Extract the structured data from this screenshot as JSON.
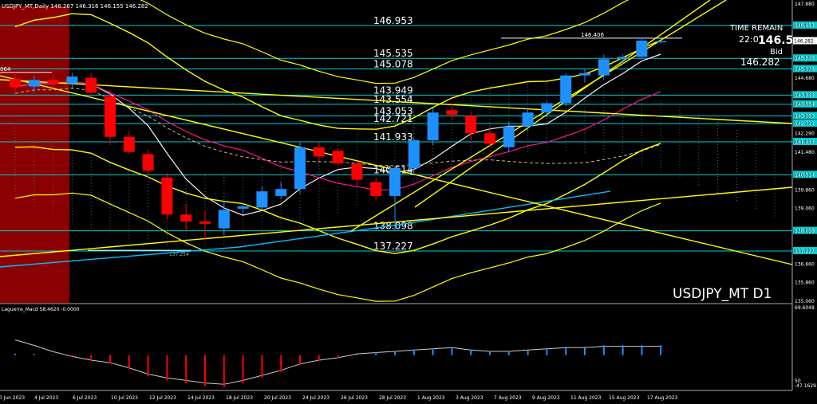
{
  "header": {
    "symbol_info": "USDJPY_MT,Daily  146.267 146.316 146.155 146.282",
    "indicator_label": "Laguerre_Macd 58.4620 -0.0000"
  },
  "info": {
    "time_remain_label": "TIME REMAIN",
    "time_remain_value": "22:0",
    "bid_price_large": "146.5",
    "bid_label": "Bid",
    "bid_value": "146.282",
    "watermark": "USDJPY_MT D1"
  },
  "colors": {
    "background": "#000000",
    "bull": "#1e90ff",
    "bear": "#ff0000",
    "level": "#00ced1",
    "band": "#ffff00",
    "ma_pink": "#ff1493",
    "ma_white": "#f5f5f5",
    "ma_cyan": "#00bfff",
    "ma_orange": "#d2b48c",
    "shade": "#8b0000",
    "axis_text": "#ffffff"
  },
  "chart_data": {
    "type": "candlestick",
    "ylim": [
      135.06,
      147.88
    ],
    "price_ticks": [
      "147.880",
      "146.953",
      "146.282",
      "145.535",
      "145.078",
      "144.680",
      "143.949",
      "143.554",
      "143.053",
      "142.721",
      "142.290",
      "141.933",
      "141.480",
      "140.514",
      "139.860",
      "139.060",
      "138.098",
      "137.227",
      "136.660",
      "135.860",
      "135.060"
    ],
    "date_labels": [
      "30 Jun 2023",
      "4 Jul 2023",
      "6 Jul 2023",
      "10 Jul 2023",
      "12 Jul 2023",
      "14 Jul 2023",
      "18 Jul 2023",
      "20 Jul 2023",
      "24 Jul 2023",
      "26 Jul 2023",
      "28 Jul 2023",
      "1 Aug 2023",
      "3 Aug 2023",
      "7 Aug 2023",
      "9 Aug 2023",
      "11 Aug 2023",
      "15 Aug 2023",
      "17 Aug 2023"
    ],
    "levels": [
      {
        "price": 146.953,
        "label": "146.953"
      },
      {
        "price": 145.535,
        "label": "145.535"
      },
      {
        "price": 145.078,
        "label": "145.078"
      },
      {
        "price": 143.949,
        "label": "143.949"
      },
      {
        "price": 143.554,
        "label": "143.554"
      },
      {
        "price": 143.053,
        "label": "143.053"
      },
      {
        "price": 142.721,
        "label": "142.721"
      },
      {
        "price": 141.933,
        "label": "141.933"
      },
      {
        "price": 140.514,
        "label": "140.514"
      },
      {
        "price": 138.098,
        "label": "138.098"
      },
      {
        "price": 137.227,
        "label": "137.227"
      }
    ],
    "annotations": [
      {
        "label": "146.406",
        "price": 146.406
      },
      {
        "label": "137.254",
        "price": 137.254
      },
      {
        "label": "064",
        "price": 144.93
      }
    ],
    "candles": [
      {
        "o": 144.65,
        "h": 144.93,
        "l": 144.1,
        "c": 144.3
      },
      {
        "o": 144.32,
        "h": 144.8,
        "l": 144.05,
        "c": 144.6
      },
      {
        "o": 144.6,
        "h": 144.82,
        "l": 144.3,
        "c": 144.45
      },
      {
        "o": 144.45,
        "h": 144.9,
        "l": 144.2,
        "c": 144.75
      },
      {
        "o": 144.7,
        "h": 144.9,
        "l": 143.9,
        "c": 144.05
      },
      {
        "o": 143.9,
        "h": 144.15,
        "l": 141.8,
        "c": 142.15
      },
      {
        "o": 142.15,
        "h": 142.4,
        "l": 141.4,
        "c": 141.5
      },
      {
        "o": 141.4,
        "h": 141.6,
        "l": 140.4,
        "c": 140.7
      },
      {
        "o": 140.4,
        "h": 140.6,
        "l": 138.6,
        "c": 138.8
      },
      {
        "o": 138.8,
        "h": 139.25,
        "l": 138.1,
        "c": 138.5
      },
      {
        "o": 138.5,
        "h": 139.0,
        "l": 137.7,
        "c": 138.4
      },
      {
        "o": 138.2,
        "h": 139.4,
        "l": 137.9,
        "c": 139.0
      },
      {
        "o": 139.05,
        "h": 139.3,
        "l": 138.8,
        "c": 139.15
      },
      {
        "o": 139.1,
        "h": 140.0,
        "l": 139.0,
        "c": 139.8
      },
      {
        "o": 139.6,
        "h": 140.2,
        "l": 139.45,
        "c": 139.9
      },
      {
        "o": 139.9,
        "h": 141.95,
        "l": 139.7,
        "c": 141.7
      },
      {
        "o": 141.7,
        "h": 141.9,
        "l": 141.1,
        "c": 141.3
      },
      {
        "o": 141.55,
        "h": 141.65,
        "l": 140.9,
        "c": 141.0
      },
      {
        "o": 141.0,
        "h": 141.1,
        "l": 140.0,
        "c": 140.3
      },
      {
        "o": 140.2,
        "h": 140.4,
        "l": 139.45,
        "c": 139.6
      },
      {
        "o": 139.6,
        "h": 140.9,
        "l": 138.1,
        "c": 140.8
      },
      {
        "o": 140.8,
        "h": 142.1,
        "l": 140.5,
        "c": 142.0
      },
      {
        "o": 142.0,
        "h": 143.4,
        "l": 141.8,
        "c": 143.2
      },
      {
        "o": 143.3,
        "h": 143.6,
        "l": 142.9,
        "c": 143.1
      },
      {
        "o": 143.05,
        "h": 143.2,
        "l": 142.0,
        "c": 142.3
      },
      {
        "o": 142.3,
        "h": 142.6,
        "l": 141.7,
        "c": 141.85
      },
      {
        "o": 141.7,
        "h": 142.8,
        "l": 141.5,
        "c": 142.6
      },
      {
        "o": 142.6,
        "h": 143.4,
        "l": 142.4,
        "c": 143.2
      },
      {
        "o": 143.2,
        "h": 143.7,
        "l": 143.0,
        "c": 143.6
      },
      {
        "o": 143.6,
        "h": 144.9,
        "l": 143.5,
        "c": 144.8
      },
      {
        "o": 144.8,
        "h": 145.1,
        "l": 144.5,
        "c": 144.9
      },
      {
        "o": 144.8,
        "h": 145.7,
        "l": 144.6,
        "c": 145.5
      },
      {
        "o": 145.5,
        "h": 145.7,
        "l": 145.3,
        "c": 145.6
      },
      {
        "o": 145.6,
        "h": 146.45,
        "l": 145.5,
        "c": 146.3
      },
      {
        "o": 146.267,
        "h": 146.316,
        "l": 146.155,
        "c": 146.282
      }
    ],
    "macd": [
      {
        "v": 2,
        "bar": "blue"
      },
      {
        "v": 2,
        "bar": "blue"
      },
      {
        "v": 1,
        "bar": "red"
      },
      {
        "v": -2,
        "bar": "red"
      },
      {
        "v": -8,
        "bar": "red"
      },
      {
        "v": -12,
        "bar": "red"
      },
      {
        "v": -20,
        "bar": "red"
      },
      {
        "v": -30,
        "bar": "red"
      },
      {
        "v": -36,
        "bar": "red"
      },
      {
        "v": -40,
        "bar": "red"
      },
      {
        "v": -44,
        "bar": "red"
      },
      {
        "v": -46,
        "bar": "red"
      },
      {
        "v": -40,
        "bar": "red"
      },
      {
        "v": -32,
        "bar": "red"
      },
      {
        "v": -24,
        "bar": "red"
      },
      {
        "v": -14,
        "bar": "red"
      },
      {
        "v": -8,
        "bar": "red"
      },
      {
        "v": -4,
        "bar": "red"
      },
      {
        "v": 2,
        "bar": "blue"
      },
      {
        "v": 4,
        "bar": "blue"
      },
      {
        "v": 6,
        "bar": "blue"
      },
      {
        "v": 8,
        "bar": "blue"
      },
      {
        "v": 10,
        "bar": "blue"
      },
      {
        "v": 12,
        "bar": "blue"
      },
      {
        "v": 8,
        "bar": "blue"
      },
      {
        "v": 6,
        "bar": "blue"
      },
      {
        "v": 6,
        "bar": "blue"
      },
      {
        "v": 8,
        "bar": "blue"
      },
      {
        "v": 10,
        "bar": "blue"
      },
      {
        "v": 12,
        "bar": "blue"
      },
      {
        "v": 12,
        "bar": "blue"
      },
      {
        "v": 14,
        "bar": "blue"
      },
      {
        "v": 14,
        "bar": "blue"
      },
      {
        "v": 14,
        "bar": "blue"
      },
      {
        "v": 14,
        "bar": "blue"
      }
    ],
    "macd_ticks": [
      "69.6048",
      "50",
      "-47.1629"
    ],
    "macd_ylim": [
      -48,
      70
    ]
  }
}
